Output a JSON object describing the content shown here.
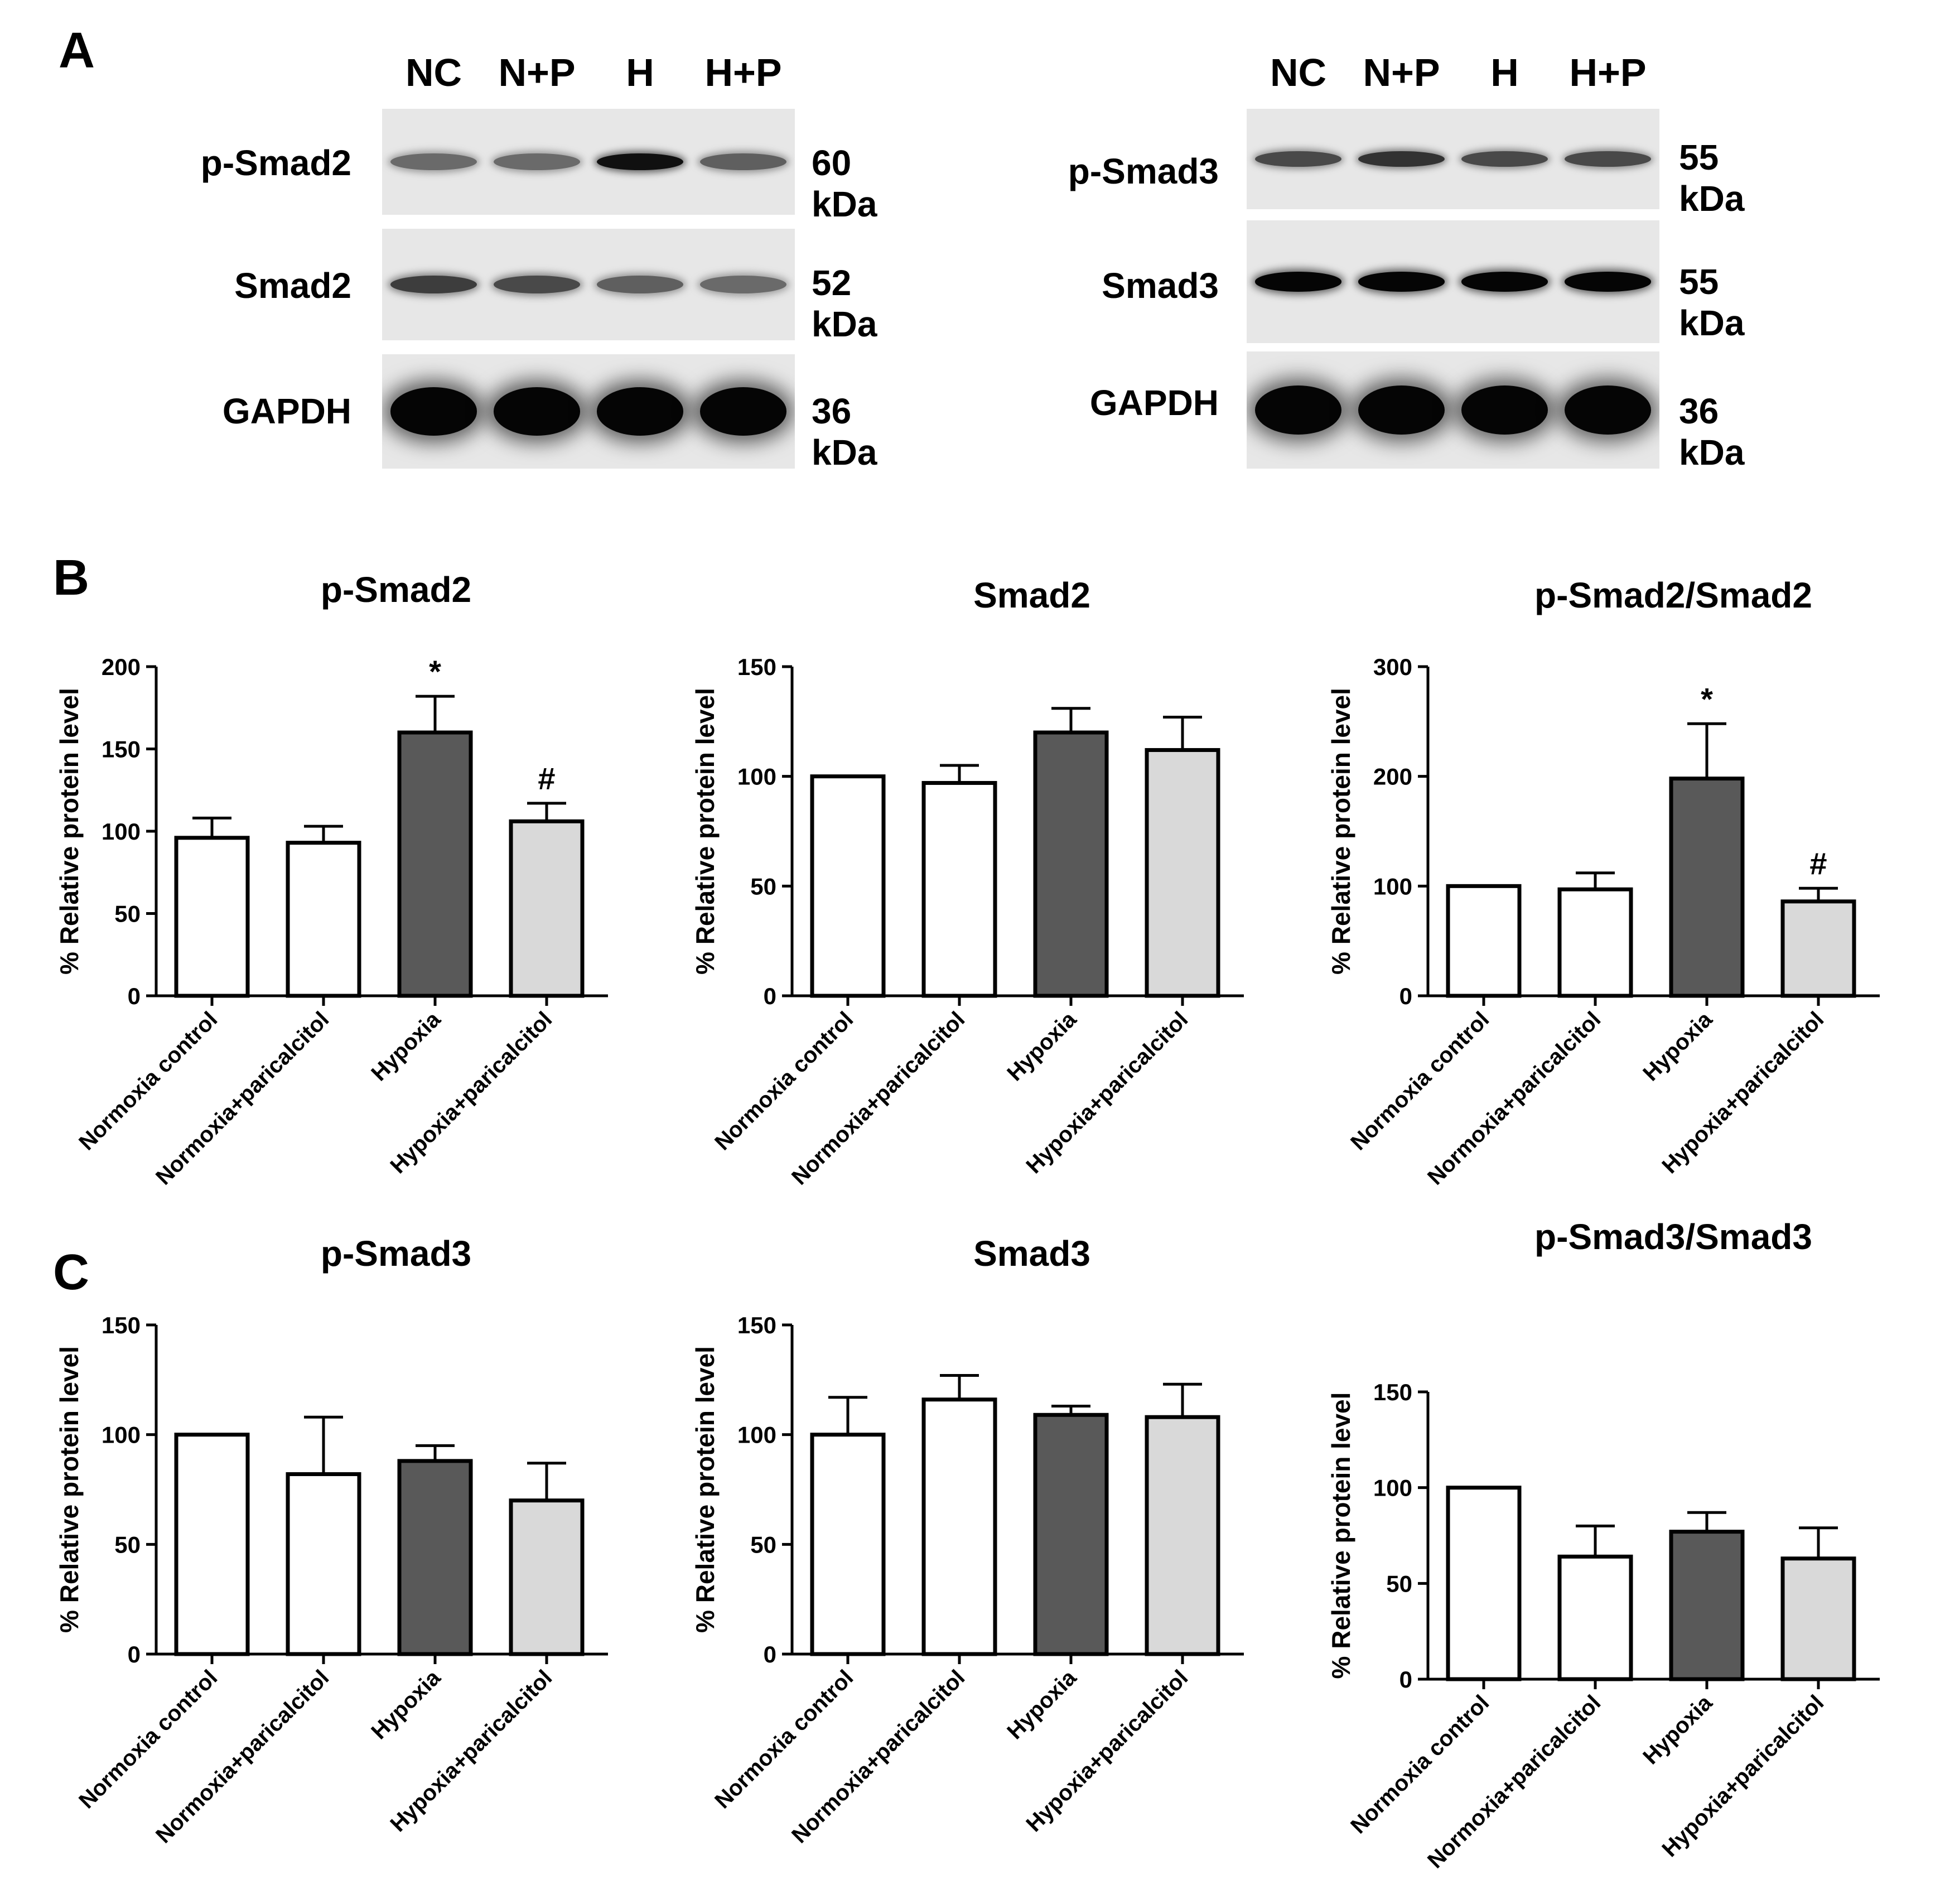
{
  "panels": {
    "a": "A",
    "b": "B",
    "c": "C"
  },
  "western_blot": {
    "left": {
      "lanes": [
        "NC",
        "N+P",
        "H",
        "H+P"
      ],
      "rows": [
        {
          "label": "p-Smad2",
          "kda": "60 kDa",
          "intensity": [
            0.55,
            0.55,
            0.95,
            0.6
          ],
          "thickness": "medium"
        },
        {
          "label": "Smad2",
          "kda": "52 kDa",
          "intensity": [
            0.75,
            0.7,
            0.6,
            0.55
          ],
          "thickness": "medium"
        },
        {
          "label": "GAPDH",
          "kda": "36 kDa",
          "intensity": [
            1.0,
            1.0,
            1.0,
            1.0
          ],
          "thickness": "thick"
        }
      ]
    },
    "right": {
      "lanes": [
        "NC",
        "N+P",
        "H",
        "H+P"
      ],
      "rows": [
        {
          "label": "p-Smad3",
          "kda": "55 kDa",
          "intensity": [
            0.7,
            0.8,
            0.7,
            0.7
          ],
          "thickness": "medium"
        },
        {
          "label": "Smad3",
          "kda": "55 kDa",
          "intensity": [
            1.0,
            1.0,
            1.0,
            1.0
          ],
          "thickness": "medium"
        },
        {
          "label": "GAPDH",
          "kda": "36 kDa",
          "intensity": [
            1.0,
            1.0,
            1.0,
            1.0
          ],
          "thickness": "thick"
        }
      ]
    }
  },
  "colors": {
    "normoxia": "#ffffff",
    "hypoxia": "#595959",
    "hypoxia_paricalcitol": "#d9d9d9",
    "axis": "#000000"
  },
  "chart_data": [
    {
      "type": "bar",
      "title": "p-Smad2",
      "ylabel": "% Relative protein level",
      "ylim": [
        0,
        200
      ],
      "yticks": [
        0,
        50,
        100,
        150,
        200
      ],
      "categories": [
        "Normoxia control",
        "Normoxia+paricalcitol",
        "Hypoxia",
        "Hypoxia+paricalcitol"
      ],
      "values": [
        96,
        93,
        160,
        106
      ],
      "errors": [
        12,
        10,
        22,
        11
      ],
      "annotations": [
        "",
        "",
        "*",
        "#"
      ]
    },
    {
      "type": "bar",
      "title": "Smad2",
      "ylabel": "% Relative protein level",
      "ylim": [
        0,
        150
      ],
      "yticks": [
        0,
        50,
        100,
        150
      ],
      "categories": [
        "Normoxia control",
        "Normoxia+paricalcitol",
        "Hypoxia",
        "Hypoxia+paricalcitol"
      ],
      "values": [
        100,
        97,
        120,
        112
      ],
      "errors": [
        0,
        8,
        11,
        15
      ],
      "annotations": [
        "",
        "",
        "",
        ""
      ]
    },
    {
      "type": "bar",
      "title": "p-Smad2/Smad2",
      "ylabel": "% Relative protein level",
      "ylim": [
        0,
        300
      ],
      "yticks": [
        0,
        100,
        200,
        300
      ],
      "categories": [
        "Normoxia control",
        "Normoxia+paricalcitol",
        "Hypoxia",
        "Hypoxia+paricalcitol"
      ],
      "values": [
        100,
        97,
        198,
        86
      ],
      "errors": [
        0,
        15,
        50,
        12
      ],
      "annotations": [
        "",
        "",
        "*",
        "#"
      ]
    },
    {
      "type": "bar",
      "title": "p-Smad3",
      "ylabel": "% Relative protein level",
      "ylim": [
        0,
        150
      ],
      "yticks": [
        0,
        50,
        100,
        150
      ],
      "categories": [
        "Normoxia control",
        "Normoxia+paricalcitol",
        "Hypoxia",
        "Hypoxia+paricalcitol"
      ],
      "values": [
        100,
        82,
        88,
        70
      ],
      "errors": [
        0,
        26,
        7,
        17
      ],
      "annotations": [
        "",
        "",
        "",
        ""
      ]
    },
    {
      "type": "bar",
      "title": "Smad3",
      "ylabel": "% Relative protein level",
      "ylim": [
        0,
        150
      ],
      "yticks": [
        0,
        50,
        100,
        150
      ],
      "categories": [
        "Normoxia control",
        "Normoxia+paricalcitol",
        "Hypoxia",
        "Hypoxia+paricalcitol"
      ],
      "values": [
        100,
        116,
        109,
        108
      ],
      "errors": [
        17,
        11,
        4,
        15
      ],
      "annotations": [
        "",
        "",
        "",
        ""
      ]
    },
    {
      "type": "bar",
      "title": "p-Smad3/Smad3",
      "ylabel": "% Relative protein level",
      "ylim": [
        0,
        150
      ],
      "yticks": [
        0,
        50,
        100,
        150
      ],
      "categories": [
        "Normoxia control",
        "Normoxia+paricalcitol",
        "Hypoxia",
        "Hypoxia+paricalcitol"
      ],
      "values": [
        100,
        64,
        77,
        63
      ],
      "errors": [
        0,
        16,
        10,
        16
      ],
      "annotations": [
        "",
        "",
        "",
        ""
      ]
    }
  ]
}
